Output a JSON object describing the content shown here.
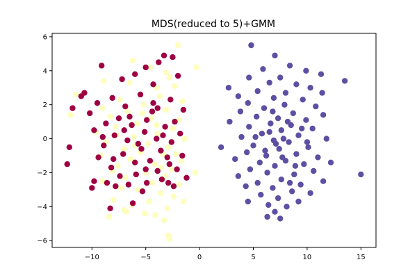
{
  "chart_data": {
    "type": "scatter",
    "title": "MDS(reduced to 5)+GMM",
    "xlabel": "",
    "ylabel": "",
    "xlim": [
      -13.7,
      16.4
    ],
    "ylim": [
      -6.4,
      6.2
    ],
    "xticks": [
      -10,
      -5,
      0,
      5,
      10,
      15
    ],
    "xtick_labels": [
      "−10",
      "−5",
      "0",
      "5",
      "10",
      "15"
    ],
    "yticks": [
      -6,
      -4,
      -2,
      0,
      2,
      4,
      6
    ],
    "ytick_labels": [
      "−6",
      "−4",
      "−2",
      "0",
      "2",
      "4",
      "6"
    ],
    "grid": false,
    "legend": "none",
    "series": [
      {
        "color": "#fefebd",
        "points": [
          [
            -2.0,
            5.5
          ],
          [
            -6.2,
            4.6
          ],
          [
            -0.3,
            4.2
          ],
          [
            -4.6,
            4.2
          ],
          [
            -3.1,
            3.9
          ],
          [
            -2.8,
            3.6
          ],
          [
            -8.9,
            3.4
          ],
          [
            -6.5,
            3.3
          ],
          [
            -2.3,
            3.1
          ],
          [
            -4.0,
            3.0
          ],
          [
            -11.5,
            2.6
          ],
          [
            -3.7,
            2.5
          ],
          [
            -7.4,
            2.3
          ],
          [
            -1.6,
            2.2
          ],
          [
            -5.2,
            2.0
          ],
          [
            -9.0,
            1.8
          ],
          [
            -3.1,
            1.7
          ],
          [
            -6.7,
            1.6
          ],
          [
            -12.0,
            1.4
          ],
          [
            -8.3,
            1.3
          ],
          [
            -4.5,
            1.2
          ],
          [
            -1.9,
            1.1
          ],
          [
            -5.8,
            0.9
          ],
          [
            -7.8,
            0.7
          ],
          [
            -2.5,
            0.6
          ],
          [
            -9.6,
            0.4
          ],
          [
            -3.9,
            0.3
          ],
          [
            -6.1,
            0.1
          ],
          [
            -1.4,
            0.0
          ],
          [
            -8.7,
            -0.2
          ],
          [
            -4.8,
            -0.3
          ],
          [
            -2.9,
            -0.5
          ],
          [
            -7.0,
            -0.6
          ],
          [
            -5.5,
            -0.8
          ],
          [
            -3.4,
            -0.9
          ],
          [
            -9.2,
            -1.0
          ],
          [
            -6.4,
            -1.2
          ],
          [
            -1.7,
            -1.3
          ],
          [
            -4.2,
            -1.5
          ],
          [
            -7.6,
            -1.6
          ],
          [
            -2.6,
            -1.8
          ],
          [
            -8.1,
            -1.9
          ],
          [
            -5.0,
            -2.0
          ],
          [
            -3.2,
            -2.2
          ],
          [
            -0.4,
            -2.0
          ],
          [
            -6.9,
            -2.3
          ],
          [
            -9.0,
            -2.5
          ],
          [
            -4.4,
            -2.6
          ],
          [
            -1.9,
            -2.7
          ],
          [
            -7.3,
            -2.9
          ],
          [
            -5.7,
            -3.0
          ],
          [
            -3.6,
            -3.2
          ],
          [
            -2.4,
            -3.4
          ],
          [
            -8.0,
            -3.6
          ],
          [
            -4.7,
            -3.7
          ],
          [
            -6.3,
            -3.9
          ],
          [
            -1.5,
            -3.7
          ],
          [
            -3.0,
            -4.1
          ],
          [
            -7.0,
            -4.2
          ],
          [
            -5.1,
            -4.4
          ],
          [
            -8.4,
            -4.6
          ],
          [
            -3.3,
            -4.8
          ],
          [
            -6.8,
            -4.3
          ],
          [
            -2.9,
            -5.7
          ],
          [
            -2.8,
            -5.9
          ],
          [
            -4.1,
            -4.5
          ],
          [
            -7.7,
            0.2
          ],
          [
            -6.0,
            -0.4
          ],
          [
            -4.0,
            0.8
          ],
          [
            -2.2,
            -0.9
          ],
          [
            -5.3,
            1.5
          ],
          [
            -3.6,
            -1.7
          ]
        ]
      },
      {
        "color": "#9e0142",
        "points": [
          [
            -3.3,
            4.9
          ],
          [
            -2.5,
            4.8
          ],
          [
            -5.0,
            4.2
          ],
          [
            -3.8,
            4.5
          ],
          [
            -6.0,
            3.8
          ],
          [
            -2.0,
            3.7
          ],
          [
            -9.1,
            4.3
          ],
          [
            -7.2,
            3.5
          ],
          [
            -4.3,
            3.2
          ],
          [
            -10.7,
            2.7
          ],
          [
            -11.0,
            2.5
          ],
          [
            -8.1,
            2.4
          ],
          [
            -5.5,
            2.6
          ],
          [
            -2.7,
            2.3
          ],
          [
            -9.5,
            2.1
          ],
          [
            -6.9,
            1.9
          ],
          [
            -3.9,
            1.8
          ],
          [
            -11.8,
            1.8
          ],
          [
            -1.5,
            1.7
          ],
          [
            -10.2,
            1.5
          ],
          [
            -7.5,
            1.2
          ],
          [
            -4.9,
            1.1
          ],
          [
            -2.3,
            1.0
          ],
          [
            -8.7,
            0.9
          ],
          [
            -6.3,
            0.8
          ],
          [
            -3.2,
            0.7
          ],
          [
            -9.8,
            0.5
          ],
          [
            -5.1,
            0.4
          ],
          [
            -1.8,
            0.3
          ],
          [
            -7.9,
            0.2
          ],
          [
            -4.0,
            0.0
          ],
          [
            -6.7,
            -0.1
          ],
          [
            -2.6,
            -0.2
          ],
          [
            -8.9,
            -0.4
          ],
          [
            -12.1,
            -0.5
          ],
          [
            -5.4,
            -0.6
          ],
          [
            -3.6,
            -0.7
          ],
          [
            -7.1,
            -0.9
          ],
          [
            -1.6,
            -1.0
          ],
          [
            -9.4,
            -1.1
          ],
          [
            -4.6,
            -1.3
          ],
          [
            -6.0,
            -1.4
          ],
          [
            -2.8,
            -1.5
          ],
          [
            -8.2,
            -1.7
          ],
          [
            -12.3,
            -1.5
          ],
          [
            -3.9,
            -1.9
          ],
          [
            -5.9,
            -2.1
          ],
          [
            -7.4,
            -2.2
          ],
          [
            -1.2,
            -2.3
          ],
          [
            -9.8,
            -2.5
          ],
          [
            -4.9,
            -2.6
          ],
          [
            -2.4,
            -2.8
          ],
          [
            -6.6,
            -2.7
          ],
          [
            -8.6,
            -2.6
          ],
          [
            -3.5,
            -2.4
          ],
          [
            -10.0,
            -2.9
          ],
          [
            -5.3,
            -3.1
          ],
          [
            -7.8,
            -2.8
          ],
          [
            -6.2,
            -3.8
          ],
          [
            -8.3,
            -4.1
          ],
          [
            -2.9,
            -2.6
          ],
          [
            -4.3,
            2.1
          ],
          [
            -7.0,
            0.5
          ],
          [
            -5.7,
            -0.3
          ],
          [
            -3.0,
            -1.1
          ],
          [
            -6.5,
            1.3
          ],
          [
            -8.0,
            -1.2
          ],
          [
            -4.4,
            1.6
          ],
          [
            -2.1,
            -1.8
          ],
          [
            -9.0,
            0.1
          ],
          [
            -5.0,
            -1.8
          ],
          [
            -3.4,
            0.2
          ]
        ]
      },
      {
        "color": "#5e4fa2",
        "points": [
          [
            4.8,
            5.5
          ],
          [
            7.0,
            4.9
          ],
          [
            8.4,
            4.3
          ],
          [
            5.9,
            4.1
          ],
          [
            9.9,
            4.0
          ],
          [
            11.3,
            3.8
          ],
          [
            4.6,
            3.6
          ],
          [
            7.5,
            3.6
          ],
          [
            13.5,
            3.4
          ],
          [
            6.5,
            3.3
          ],
          [
            9.0,
            3.2
          ],
          [
            2.7,
            3.0
          ],
          [
            10.3,
            3.0
          ],
          [
            5.4,
            2.8
          ],
          [
            8.0,
            2.7
          ],
          [
            11.4,
            2.7
          ],
          [
            3.6,
            2.5
          ],
          [
            6.9,
            2.4
          ],
          [
            9.6,
            2.3
          ],
          [
            4.5,
            2.1
          ],
          [
            7.9,
            2.0
          ],
          [
            10.8,
            1.9
          ],
          [
            6.0,
            1.8
          ],
          [
            3.8,
            1.6
          ],
          [
            8.7,
            1.5
          ],
          [
            11.5,
            1.4
          ],
          [
            5.3,
            1.3
          ],
          [
            7.3,
            1.2
          ],
          [
            9.9,
            1.1
          ],
          [
            2.8,
            1.0
          ],
          [
            6.6,
            0.9
          ],
          [
            8.5,
            0.8
          ],
          [
            4.6,
            0.7
          ],
          [
            10.5,
            0.6
          ],
          [
            7.6,
            0.5
          ],
          [
            5.8,
            0.3
          ],
          [
            9.2,
            0.2
          ],
          [
            3.9,
            0.1
          ],
          [
            11.8,
            0.0
          ],
          [
            6.9,
            -0.1
          ],
          [
            8.3,
            -0.2
          ],
          [
            5.0,
            -0.4
          ],
          [
            2.0,
            -0.5
          ],
          [
            10.1,
            -0.5
          ],
          [
            7.4,
            -0.6
          ],
          [
            4.4,
            -0.8
          ],
          [
            9.0,
            -0.9
          ],
          [
            6.2,
            -1.0
          ],
          [
            11.0,
            -1.1
          ],
          [
            3.3,
            -1.2
          ],
          [
            8.0,
            -1.3
          ],
          [
            5.6,
            -1.4
          ],
          [
            9.7,
            -1.5
          ],
          [
            12.2,
            -1.4
          ],
          [
            7.0,
            -1.6
          ],
          [
            4.7,
            -1.8
          ],
          [
            10.6,
            -1.9
          ],
          [
            6.3,
            -2.0
          ],
          [
            8.8,
            -2.1
          ],
          [
            15.0,
            -2.1
          ],
          [
            3.6,
            -2.2
          ],
          [
            7.6,
            -2.4
          ],
          [
            11.5,
            -2.5
          ],
          [
            5.4,
            -2.6
          ],
          [
            9.4,
            -2.7
          ],
          [
            4.3,
            -2.8
          ],
          [
            6.8,
            -2.9
          ],
          [
            8.6,
            -3.1
          ],
          [
            10.3,
            -3.2
          ],
          [
            5.7,
            -3.3
          ],
          [
            7.3,
            -3.5
          ],
          [
            4.5,
            -3.7
          ],
          [
            9.2,
            -3.7
          ],
          [
            6.4,
            -3.9
          ],
          [
            8.1,
            -4.0
          ],
          [
            7.0,
            -4.3
          ],
          [
            6.3,
            -4.6
          ],
          [
            7.5,
            -4.7
          ],
          [
            8.2,
            1.0
          ],
          [
            7.1,
            -0.3
          ],
          [
            9.5,
            0.6
          ],
          [
            6.1,
            -0.7
          ],
          [
            7.8,
            0.0
          ],
          [
            8.9,
            -1.6
          ],
          [
            5.2,
            0.1
          ],
          [
            10.0,
            -0.2
          ],
          [
            6.8,
            1.6
          ],
          [
            7.7,
            -1.1
          ],
          [
            8.4,
            -2.6
          ],
          [
            6.5,
            0.4
          ]
        ]
      }
    ]
  }
}
